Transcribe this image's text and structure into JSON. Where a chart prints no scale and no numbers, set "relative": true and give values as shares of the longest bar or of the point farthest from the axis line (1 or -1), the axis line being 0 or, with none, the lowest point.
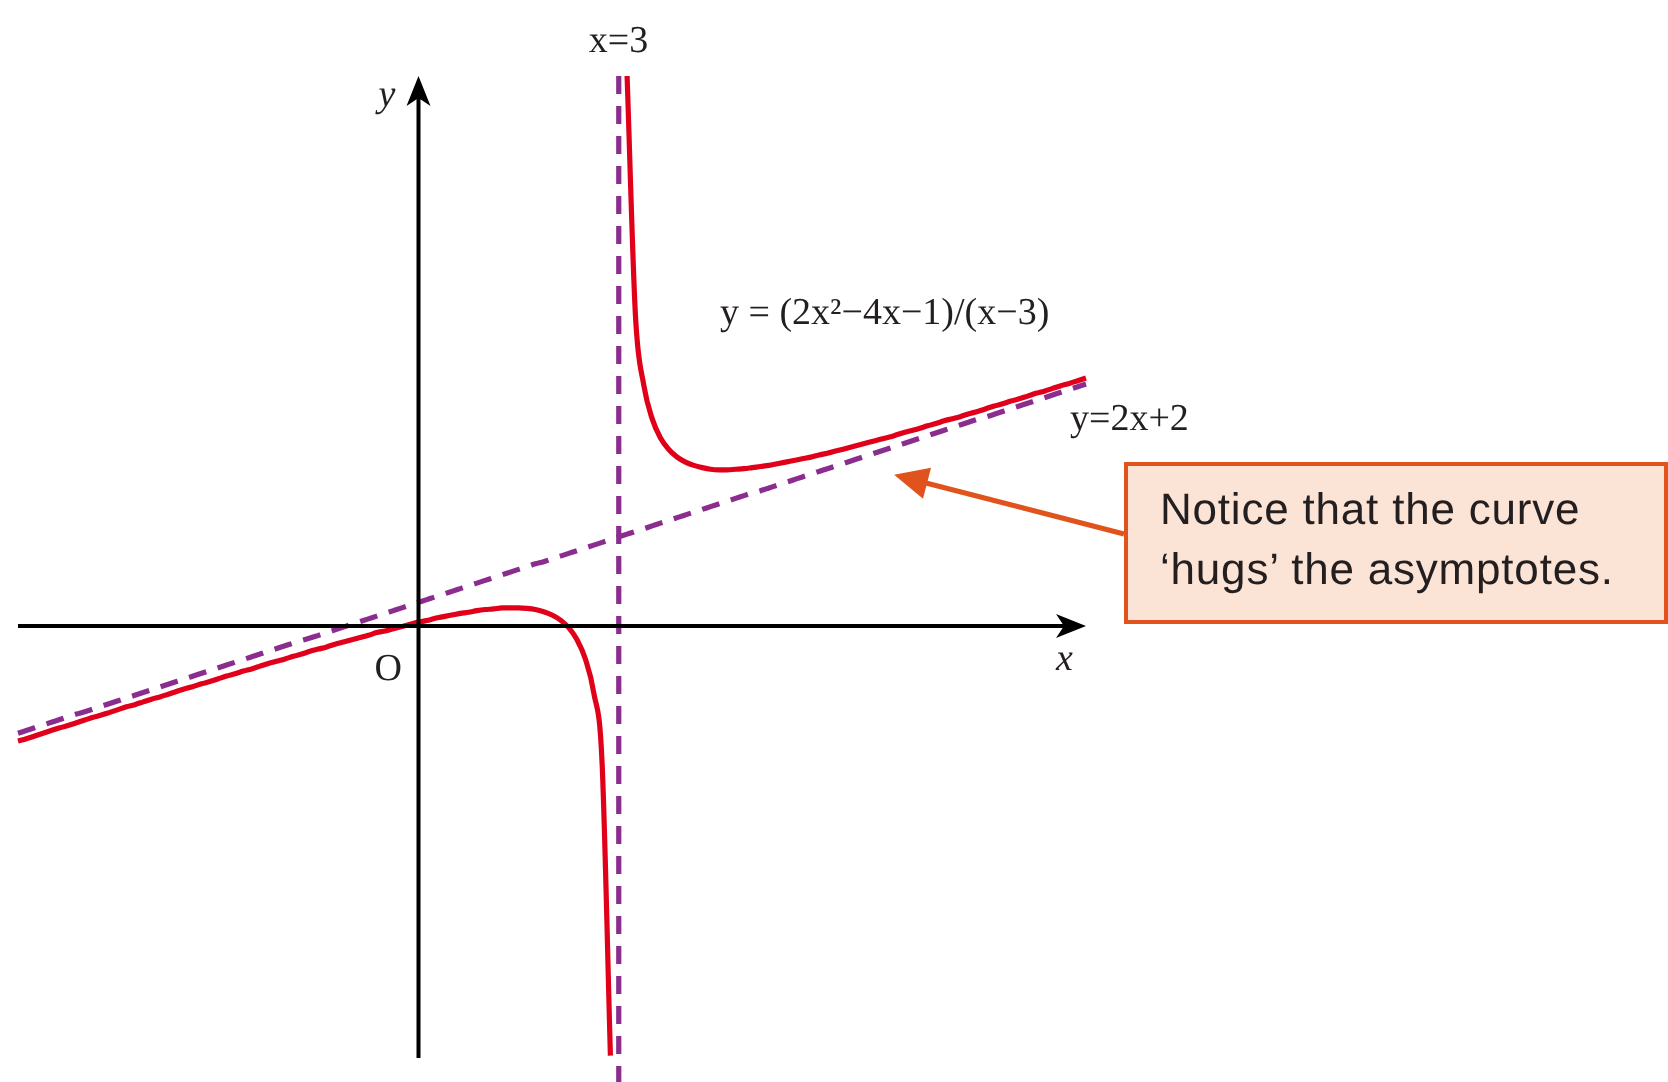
{
  "chart_data": {
    "type": "line",
    "xlabel": "x",
    "ylabel": "y",
    "relative": true,
    "marker": "none",
    "categories": [
      null,
      null,
      null,
      null,
      null,
      null,
      null,
      null,
      null,
      null,
      null,
      null,
      null,
      null,
      null,
      null,
      null,
      null,
      null,
      null,
      null,
      null,
      null,
      null,
      null,
      null,
      null,
      null,
      null,
      null,
      null,
      null,
      null,
      null,
      null,
      null,
      null,
      null,
      null,
      null,
      null,
      null,
      null,
      null,
      null,
      null,
      null,
      null,
      null,
      null,
      null,
      null,
      null,
      null,
      null,
      null,
      null,
      null,
      null,
      null,
      null,
      null,
      null,
      null,
      null,
      null,
      null,
      null,
      null,
      null,
      null,
      null,
      null,
      null,
      null,
      null,
      null,
      null,
      null,
      null,
      null,
      null,
      null,
      null,
      null,
      null,
      null,
      null,
      null,
      null,
      null,
      null,
      null,
      null,
      null,
      null,
      null,
      null,
      null,
      null,
      null,
      null,
      null,
      null,
      null,
      null,
      null,
      null,
      null,
      null,
      null,
      null,
      null,
      null,
      null,
      null,
      null,
      null,
      null,
      null,
      null,
      null,
      null,
      null,
      null,
      null,
      null,
      null,
      null
    ],
    "series": [
      {
        "name": "y = (2x²−4x−1)/(x−3)",
        "color": "#e1001a",
        "line_style": "solid",
        "values": [
          -0.209,
          -0.205,
          -0.2,
          -0.195,
          -0.19,
          -0.185,
          -0.181,
          -0.176,
          -0.171,
          -0.166,
          -0.162,
          -0.157,
          -0.152,
          -0.147,
          -0.143,
          -0.138,
          -0.133,
          -0.129,
          -0.124,
          -0.119,
          -0.114,
          -0.11,
          -0.105,
          -0.101,
          -0.096,
          -0.091,
          -0.087,
          -0.082,
          -0.078,
          -0.073,
          -0.068,
          -0.064,
          -0.06,
          -0.055,
          -0.051,
          -0.046,
          -0.042,
          -0.038,
          -0.033,
          -0.029,
          -0.025,
          -0.021,
          -0.017,
          -0.012,
          -0.009,
          -0.005,
          -0.001,
          0.003,
          0.007,
          0.01,
          0.014,
          0.017,
          0.02,
          0.023,
          0.025,
          0.028,
          0.03,
          0.031,
          0.033,
          0.033,
          0.033,
          0.032,
          0.03,
          0.026,
          0.02,
          0.011,
          -0.003,
          -0.025,
          -0.06,
          -0.121,
          -0.248,
          -0.781,
          null,
          1,
          0.565,
          0.438,
          0.377,
          0.342,
          0.321,
          0.307,
          0.298,
          0.292,
          0.288,
          0.285,
          0.284,
          0.284,
          0.285,
          0.286,
          0.288,
          0.29,
          0.292,
          0.295,
          0.298,
          0.301,
          0.304,
          0.307,
          0.311,
          0.314,
          0.318,
          0.322,
          0.326,
          0.33,
          0.334,
          0.338,
          0.342,
          0.346,
          0.351,
          0.355,
          0.359,
          0.364,
          0.368,
          0.373,
          0.377,
          0.381,
          0.386,
          0.39,
          0.395,
          0.4,
          0.404,
          0.409,
          0.413,
          0.418,
          0.423,
          0.427,
          0.432,
          0.437,
          0.441,
          0.446,
          0.451
        ]
      },
      {
        "name": "y=2x+2",
        "color": "#8b2c8f",
        "line_style": "dashed",
        "values": [
          -0.195,
          -0.19,
          -0.185,
          -0.18,
          -0.175,
          -0.17,
          -0.165,
          -0.16,
          -0.156,
          -0.151,
          -0.146,
          -0.141,
          -0.136,
          -0.131,
          -0.126,
          -0.121,
          -0.116,
          -0.111,
          -0.106,
          -0.101,
          -0.096,
          -0.091,
          -0.086,
          -0.081,
          -0.076,
          -0.071,
          -0.066,
          -0.061,
          -0.056,
          -0.051,
          -0.046,
          -0.041,
          -0.036,
          -0.031,
          -0.026,
          -0.022,
          -0.017,
          -0.012,
          -0.007,
          -0.002,
          0.003,
          0.008,
          0.013,
          0.018,
          0.023,
          0.028,
          0.033,
          0.038,
          0.043,
          0.048,
          0.053,
          0.058,
          0.063,
          0.068,
          0.073,
          0.078,
          0.083,
          0.088,
          0.093,
          0.098,
          0.103,
          0.108,
          0.113,
          0.117,
          0.122,
          0.127,
          0.132,
          0.137,
          0.142,
          0.147,
          0.152,
          0.157,
          0.162,
          0.167,
          0.172,
          0.177,
          0.182,
          0.187,
          0.192,
          0.197,
          0.202,
          0.207,
          0.212,
          0.217,
          0.222,
          0.227,
          0.232,
          0.237,
          0.242,
          0.246,
          0.251,
          0.256,
          0.261,
          0.266,
          0.271,
          0.276,
          0.281,
          0.286,
          0.291,
          0.296,
          0.301,
          0.306,
          0.311,
          0.316,
          0.321,
          0.326,
          0.331,
          0.336,
          0.341,
          0.346,
          0.351,
          0.356,
          0.361,
          0.366,
          0.371,
          0.376,
          0.38,
          0.385,
          0.39,
          0.395,
          0.4,
          0.405,
          0.41,
          0.415,
          0.42,
          0.425,
          0.43,
          0.435,
          0.44
        ]
      }
    ],
    "ref_lines": [
      {
        "axis": "x",
        "label": "x=3",
        "color": "#8b2c8f",
        "line_style": "dashed"
      }
    ],
    "annotations": [
      "O",
      "Notice that the curve ‘hugs’ the asymptotes."
    ]
  }
}
